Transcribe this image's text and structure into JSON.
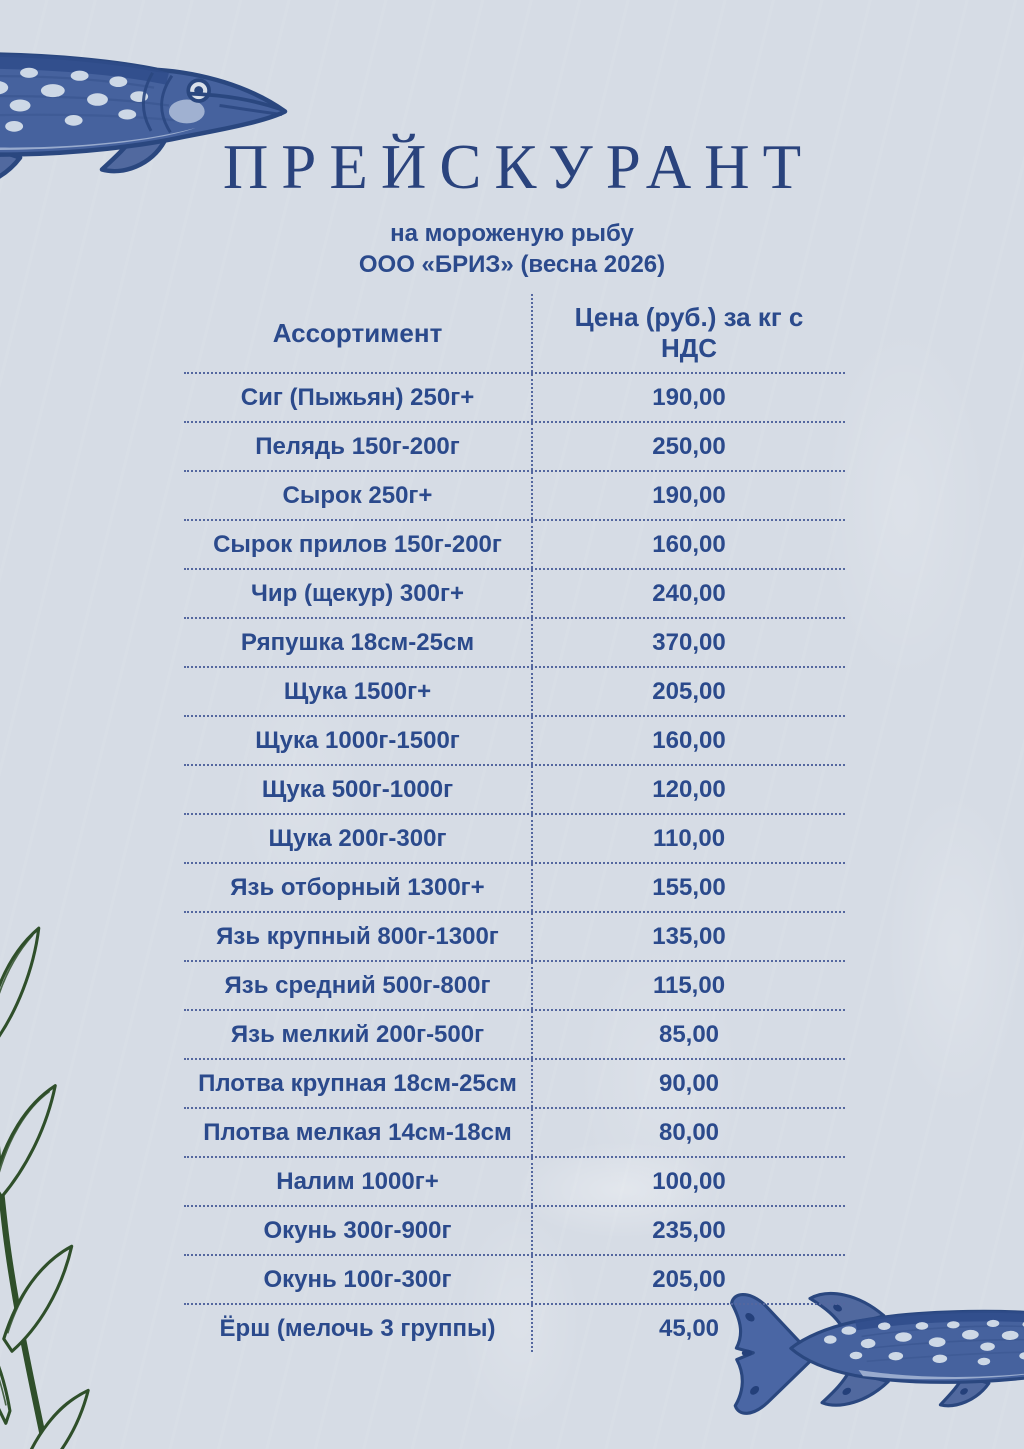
{
  "document": {
    "title": "ПРЕЙСКУРАНТ",
    "subtitle_line1": "на мороженую рыбу",
    "subtitle_line2": "ООО «БРИЗ» (весна 2026)"
  },
  "table": {
    "columns": {
      "assortment": "Ассортимент",
      "price": "Цена (руб.) за кг с НДС"
    },
    "rows": [
      {
        "name": "Сиг (Пыжьян) 250г+",
        "price": "190,00"
      },
      {
        "name": "Пелядь 150г-200г",
        "price": "250,00"
      },
      {
        "name": "Сырок 250г+",
        "price": "190,00"
      },
      {
        "name": "Сырок прилов 150г-200г",
        "price": "160,00"
      },
      {
        "name": "Чир (щекур) 300г+",
        "price": "240,00"
      },
      {
        "name": "Ряпушка 18см-25см",
        "price": "370,00"
      },
      {
        "name": "Щука 1500г+",
        "price": "205,00"
      },
      {
        "name": "Щука 1000г-1500г",
        "price": "160,00"
      },
      {
        "name": "Щука 500г-1000г",
        "price": "120,00"
      },
      {
        "name": "Щука 200г-300г",
        "price": "110,00"
      },
      {
        "name": "Язь отборный 1300г+",
        "price": "155,00"
      },
      {
        "name": "Язь крупный 800г-1300г",
        "price": "135,00"
      },
      {
        "name": "Язь средний 500г-800г",
        "price": "115,00"
      },
      {
        "name": "Язь мелкий 200г-500г",
        "price": "85,00"
      },
      {
        "name": "Плотва крупная 18см-25см",
        "price": "90,00"
      },
      {
        "name": "Плотва мелкая 14см-18см",
        "price": "80,00"
      },
      {
        "name": "Налим 1000г+",
        "price": "100,00"
      },
      {
        "name": "Окунь 300г-900г",
        "price": "235,00"
      },
      {
        "name": "Окунь 100г-300г",
        "price": "205,00"
      },
      {
        "name": "Ёрш (мелочь 3 группы)",
        "price": "45,00"
      }
    ]
  },
  "decorations": {
    "top_left": "pike-fish-sketch",
    "bottom_right": "pike-fish-sketch",
    "bottom_left": "seaweed-sketch"
  },
  "colors": {
    "background": "#d6dce5",
    "text_blue": "#2b4a8c",
    "title_blue": "#2a437d",
    "divider_blue": "#54679f",
    "fish_navy": "#2a477f",
    "seaweed_green": "#2f4f2a"
  }
}
